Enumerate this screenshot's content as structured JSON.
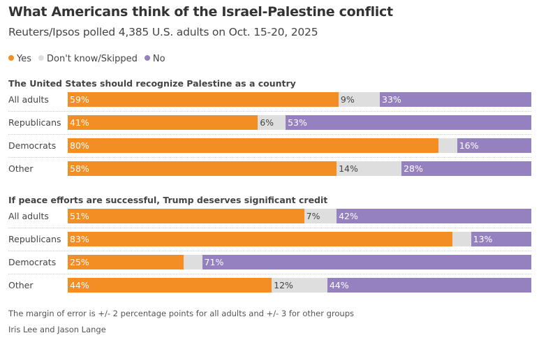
{
  "chart_data": {
    "type": "bar",
    "stacked": true,
    "orientation": "horizontal",
    "title": "What Americans think of the Israel-Palestine conflict",
    "subtitle": "Reuters/Ipsos polled 4,385 U.S. adults on Oct. 15-20, 2025",
    "legend": [
      {
        "name": "Yes",
        "color": "#f28e23"
      },
      {
        "name": "Don't know/Skipped",
        "color": "#dedede"
      },
      {
        "name": "No",
        "color": "#9581c0"
      }
    ],
    "legend_placement": "top-left",
    "panels": [
      {
        "title": "The United States should recognize Palestine as a country",
        "categories": [
          "All adults",
          "Republicans",
          "Democrats",
          "Other"
        ],
        "series": [
          {
            "name": "Yes",
            "values": [
              59,
              41,
              80,
              58
            ]
          },
          {
            "name": "Don't know/Skipped",
            "values": [
              9,
              6,
              4,
              14
            ]
          },
          {
            "name": "No",
            "values": [
              33,
              53,
              16,
              28
            ]
          }
        ],
        "labels": [
          [
            "59%",
            "9%",
            "33%"
          ],
          [
            "41%",
            "6%",
            "53%"
          ],
          [
            "80%",
            "",
            "16%"
          ],
          [
            "58%",
            "14%",
            "28%"
          ]
        ]
      },
      {
        "title": "If peace efforts are successful, Trump deserves significant credit",
        "categories": [
          "All adults",
          "Republicans",
          "Democrats",
          "Other"
        ],
        "series": [
          {
            "name": "Yes",
            "values": [
              51,
              83,
              25,
              44
            ]
          },
          {
            "name": "Don't know/Skipped",
            "values": [
              7,
              4,
              4,
              12
            ]
          },
          {
            "name": "No",
            "values": [
              42,
              13,
              71,
              44
            ]
          }
        ],
        "labels": [
          [
            "51%",
            "7%",
            "42%"
          ],
          [
            "83%",
            "",
            "13%"
          ],
          [
            "25%",
            "",
            "71%"
          ],
          [
            "44%",
            "12%",
            "44%"
          ]
        ]
      }
    ],
    "note": "The margin of error is +/- 2 percentage points for all adults and +/- 3 for other groups",
    "credit": "Iris Lee and Jason Lange"
  }
}
